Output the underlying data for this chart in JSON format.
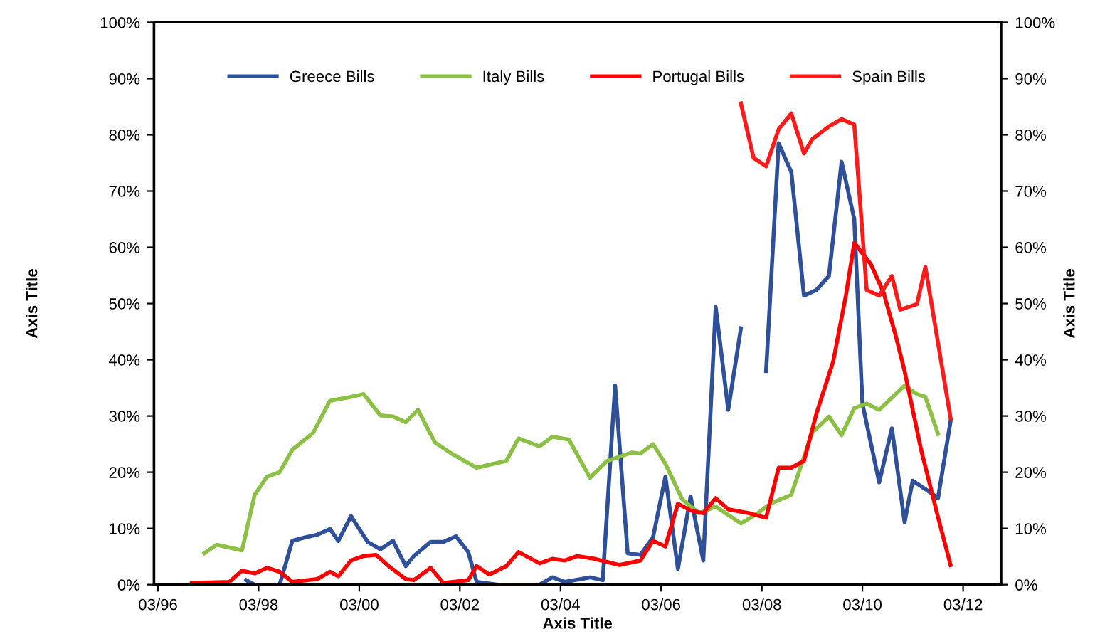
{
  "chart_data": {
    "type": "line",
    "xlabel": "Axis Title",
    "ylabel": "Axis Title",
    "y2label": "Axis Title",
    "xlim": [
      "1996-02",
      "2012-12"
    ],
    "xticks": [
      {
        "value": "1996-03",
        "label": "03/96"
      },
      {
        "value": "1998-03",
        "label": "03/98"
      },
      {
        "value": "2000-03",
        "label": "03/00"
      },
      {
        "value": "2002-03",
        "label": "03/02"
      },
      {
        "value": "2004-03",
        "label": "03/04"
      },
      {
        "value": "2006-03",
        "label": "03/06"
      },
      {
        "value": "2008-03",
        "label": "03/08"
      },
      {
        "value": "2010-03",
        "label": "03/10"
      },
      {
        "value": "2012-03",
        "label": "03/12"
      }
    ],
    "ylim": [
      0,
      100
    ],
    "yticks": [
      {
        "value": 0,
        "label": "0%"
      },
      {
        "value": 10,
        "label": "10%"
      },
      {
        "value": 20,
        "label": "20%"
      },
      {
        "value": 30,
        "label": "30%"
      },
      {
        "value": 40,
        "label": "40%"
      },
      {
        "value": 50,
        "label": "50%"
      },
      {
        "value": 60,
        "label": "60%"
      },
      {
        "value": 70,
        "label": "70%"
      },
      {
        "value": 80,
        "label": "80%"
      },
      {
        "value": 90,
        "label": "90%"
      },
      {
        "value": 100,
        "label": "100%"
      }
    ],
    "y2lim": [
      0,
      100
    ],
    "y2ticks": [
      {
        "value": 0,
        "label": "0%"
      },
      {
        "value": 10,
        "label": "10%"
      },
      {
        "value": 20,
        "label": "20%"
      },
      {
        "value": 30,
        "label": "30%"
      },
      {
        "value": 40,
        "label": "40%"
      },
      {
        "value": 50,
        "label": "50%"
      },
      {
        "value": 60,
        "label": "60%"
      },
      {
        "value": 70,
        "label": "70%"
      },
      {
        "value": 80,
        "label": "80%"
      },
      {
        "value": 90,
        "label": "90%"
      },
      {
        "value": 100,
        "label": "100%"
      }
    ],
    "grid": false,
    "legend": "top",
    "marker": "none",
    "line_style": "solid",
    "series": [
      {
        "name": "Greece Bills",
        "color": "#2e4f9a",
        "x": [
          "1997-12",
          "1998-02",
          "1998-08",
          "1998-11",
          "1999-02",
          "1999-05",
          "1999-08",
          "1999-10",
          "2000-01",
          "2000-05",
          "2000-08",
          "2000-11",
          "2001-02",
          "2001-04",
          "2001-08",
          "2001-11",
          "2002-02",
          "2002-05",
          "2002-07",
          "2002-12",
          "2003-10",
          "2004-01",
          "2004-04",
          "2004-10",
          "2005-01",
          "2005-04",
          "2005-07",
          "2005-10",
          "2006-01",
          "2006-04",
          "2006-07",
          "2006-10",
          "2007-01",
          "2007-04",
          "2007-07",
          "2007-10",
          "2008-01",
          "2008-04",
          "2008-07",
          "2008-10",
          "2009-01",
          "2009-04",
          "2009-07",
          "2009-10",
          "2010-01",
          "2010-03",
          "2010-07",
          "2010-10",
          "2011-01",
          "2011-03",
          "2011-06",
          "2011-09",
          "2011-12"
        ],
        "values": [
          0.8,
          0,
          0,
          7.8,
          8.4,
          8.9,
          9.9,
          7.8,
          12.2,
          7.6,
          6.3,
          7.8,
          3.3,
          5.1,
          7.6,
          7.6,
          8.6,
          5.8,
          0.5,
          0,
          0,
          1.3,
          0.5,
          1.3,
          0.8,
          35.4,
          5.6,
          5.3,
          8.4,
          19.2,
          2.8,
          15.7,
          4.3,
          49.4,
          31.1,
          45.6,
          null,
          38,
          78.5,
          73.4,
          51.4,
          52.4,
          54.9,
          75.2,
          65,
          32.2,
          18.2,
          27.8,
          11.1,
          18.5,
          17,
          15.4,
          29.1
        ]
      },
      {
        "name": "Italy Bills",
        "color": "#8cc044",
        "x": [
          "1997-02",
          "1997-05",
          "1997-11",
          "1998-02",
          "1998-05",
          "1998-08",
          "1998-11",
          "1999-04",
          "1999-08",
          "2000-01",
          "2000-04",
          "2000-08",
          "2000-11",
          "2001-02",
          "2001-05",
          "2001-09",
          "2002-01",
          "2002-07",
          "2003-02",
          "2003-05",
          "2003-10",
          "2004-01",
          "2004-05",
          "2004-10",
          "2005-02",
          "2005-08",
          "2005-10",
          "2006-01",
          "2006-04",
          "2006-08",
          "2006-12",
          "2007-04",
          "2007-10",
          "2008-02",
          "2008-05",
          "2008-10",
          "2009-03",
          "2009-07",
          "2009-10",
          "2010-01",
          "2010-04",
          "2010-07",
          "2011-01",
          "2011-04",
          "2011-06",
          "2011-09"
        ],
        "values": [
          5.6,
          7.1,
          6.1,
          16,
          19.2,
          20,
          24,
          27,
          32.7,
          33.4,
          33.9,
          30.1,
          29.9,
          28.9,
          31.1,
          25.3,
          23.3,
          20.8,
          22,
          26,
          24.6,
          26.3,
          25.8,
          19,
          22,
          23.5,
          23.3,
          25,
          21.5,
          15.2,
          12.7,
          13.9,
          10.9,
          12.7,
          14.4,
          16,
          27,
          29.9,
          26.6,
          31.4,
          32.2,
          31.1,
          35.4,
          33.9,
          33.4,
          26.8
        ]
      },
      {
        "name": "Portugal Bills",
        "color": "#ff0000",
        "x": [
          "1996-11",
          "1997-08",
          "1997-11",
          "1998-02",
          "1998-05",
          "1998-08",
          "1998-11",
          "1999-05",
          "1999-08",
          "1999-10",
          "2000-01",
          "2000-04",
          "2000-07",
          "2000-10",
          "2001-02",
          "2001-04",
          "2001-08",
          "2001-11",
          "2002-05",
          "2002-07",
          "2002-10",
          "2003-02",
          "2003-05",
          "2003-07",
          "2003-10",
          "2004-01",
          "2004-04",
          "2004-07",
          "2004-11",
          "2005-05",
          "2005-10",
          "2006-01",
          "2006-04",
          "2006-07",
          "2006-10",
          "2007-01",
          "2007-04",
          "2007-07",
          "2007-12",
          "2008-04",
          "2008-07",
          "2008-10",
          "2009-01",
          "2009-04",
          "2009-08",
          "2009-11",
          "2010-01",
          "2010-05",
          "2010-08",
          "2010-11",
          "2011-01",
          "2011-05",
          "2011-09",
          "2011-12"
        ],
        "values": [
          0.3,
          0.5,
          2.5,
          2,
          3,
          2.3,
          0.5,
          1,
          2.3,
          1.5,
          4.3,
          5.1,
          5.3,
          3.3,
          1,
          0.8,
          3,
          0.3,
          0.8,
          3.3,
          1.8,
          3.3,
          5.8,
          5,
          3.8,
          4.6,
          4.3,
          5.1,
          4.6,
          3.5,
          4.3,
          7.8,
          6.8,
          14.4,
          13.2,
          12.7,
          15.4,
          13.4,
          12.7,
          11.9,
          20.8,
          20.8,
          22,
          30.4,
          39.7,
          51.4,
          60.8,
          57,
          52,
          44,
          38,
          24,
          12,
          3.5
        ]
      },
      {
        "name": "Spain Bills",
        "color": "#ff1a1a",
        "x": [
          "2007-10",
          "2008-01",
          "2008-04",
          "2008-07",
          "2008-10",
          "2009-01",
          "2009-03",
          "2009-07",
          "2009-10",
          "2010-01",
          "2010-04",
          "2010-07",
          "2010-10",
          "2010-12",
          "2011-04",
          "2011-06",
          "2011-12"
        ],
        "values": [
          85.6,
          75.9,
          74.4,
          81,
          83.8,
          76.7,
          79.2,
          81.5,
          82.8,
          81.8,
          52.4,
          51.4,
          54.9,
          48.9,
          49.9,
          56.5,
          29.6
        ]
      }
    ]
  }
}
